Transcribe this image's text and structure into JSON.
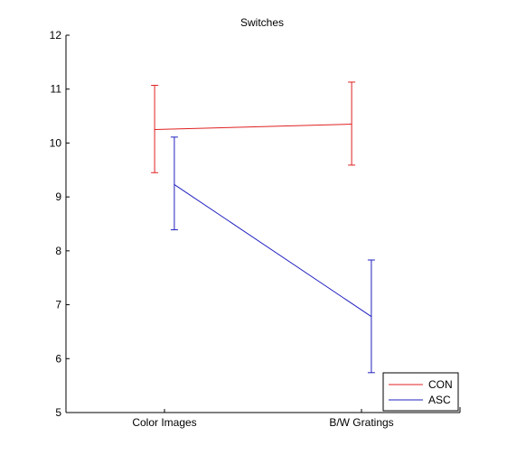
{
  "chart_data": {
    "type": "line",
    "title": "Switches",
    "xlabel": "",
    "ylabel": "",
    "categories": [
      "Color Images",
      "B/W Gratings"
    ],
    "ylim": [
      5,
      12
    ],
    "yticks": [
      5,
      6,
      7,
      8,
      9,
      10,
      11,
      12
    ],
    "grid": false,
    "legend_position": "bottom-right",
    "series": [
      {
        "name": "CON",
        "color": "#e02020",
        "values": [
          10.25,
          10.35
        ],
        "error_upper": [
          11.07,
          11.13
        ],
        "error_lower": [
          9.45,
          9.59
        ],
        "x_offset": -0.05
      },
      {
        "name": "ASC",
        "color": "#2020c0",
        "values": [
          9.23,
          6.78
        ],
        "error_upper": [
          10.11,
          7.83
        ],
        "error_lower": [
          8.39,
          5.74
        ],
        "x_offset": 0.05
      }
    ]
  }
}
